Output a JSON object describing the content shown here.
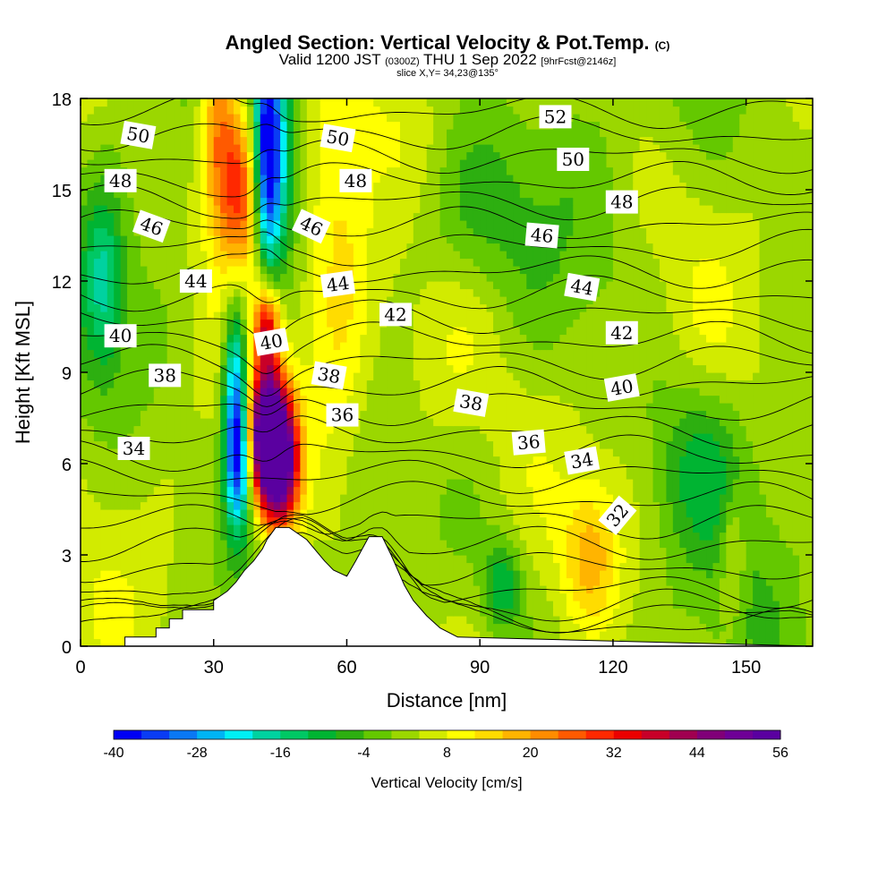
{
  "header": {
    "title": "Angled Section: Vertical Velocity & Pot.Temp.",
    "title_mark": "(C)",
    "subtitle_a": "Valid 1200 JST",
    "subtitle_b": "(0300Z)",
    "subtitle_c": "THU 1 Sep 2022",
    "subtitle_d": "[9hrFcst@2146z]",
    "slice": "slice X,Y= 34,23@135°"
  },
  "chart_data": {
    "type": "heatmap",
    "xlabel": "Distance [nm]",
    "ylabel": "Height [Kft MSL]",
    "xlim": [
      0,
      165
    ],
    "ylim": [
      0,
      18
    ],
    "xticks": [
      0,
      30,
      60,
      90,
      120,
      150
    ],
    "yticks": [
      0,
      3,
      6,
      9,
      12,
      15,
      18
    ],
    "colorbar": {
      "title": "Vertical Velocity [cm/s]",
      "min": -40,
      "max": 56,
      "step": 4,
      "tick_labels": [
        "-40",
        "-28",
        "-16",
        "-4",
        "8",
        "20",
        "32",
        "44",
        "56"
      ],
      "colors": [
        "#0000f5",
        "#0a3cf5",
        "#0a78f5",
        "#00b4f5",
        "#00f0f5",
        "#00d2a0",
        "#00c864",
        "#00b432",
        "#2daf10",
        "#64c800",
        "#9bd700",
        "#d2eb00",
        "#ffff00",
        "#ffdc00",
        "#ffb400",
        "#ff8c00",
        "#ff5a00",
        "#ff2800",
        "#eb0000",
        "#c80028",
        "#a00050",
        "#800078",
        "#6e0096",
        "#5a00a0"
      ]
    },
    "terrain_profile": {
      "x": [
        0,
        10,
        10,
        17,
        17,
        20,
        20,
        23,
        23,
        30,
        30,
        30,
        33,
        33,
        35,
        35,
        37,
        37,
        39,
        39,
        41,
        41,
        42,
        42,
        44,
        44,
        47,
        47,
        51,
        51,
        55,
        55,
        57,
        57,
        60,
        60,
        62,
        62,
        65,
        65,
        66,
        66,
        68,
        68,
        70,
        70,
        73,
        73,
        75,
        75,
        78,
        78,
        81,
        81,
        85,
        85,
        165
      ],
      "y": [
        0,
        0,
        0.3,
        0.3,
        0.6,
        0.6,
        0.9,
        0.9,
        1.2,
        1.2,
        1.5,
        1.5,
        1.8,
        1.8,
        2.1,
        2.1,
        2.5,
        2.5,
        2.8,
        2.8,
        3.2,
        3.2,
        3.5,
        3.5,
        3.9,
        3.9,
        3.9,
        3.9,
        3.5,
        3.5,
        2.8,
        2.8,
        2.5,
        2.5,
        2.3,
        2.3,
        2.8,
        2.8,
        3.6,
        3.6,
        3.6,
        3.6,
        3.6,
        3.6,
        3.0,
        3.0,
        2.0,
        2.0,
        1.5,
        1.5,
        1.0,
        1.0,
        0.6,
        0.6,
        0.3,
        0.3,
        0
      ]
    },
    "vv_features": [
      {
        "x": 31,
        "y": 17,
        "sx": 3,
        "sy": 2.5,
        "v": 24
      },
      {
        "x": 36,
        "y": 15,
        "sx": 3,
        "sy": 2,
        "v": 28
      },
      {
        "x": 42,
        "y": 16.5,
        "sx": 2,
        "sy": 3,
        "v": -36
      },
      {
        "x": 45,
        "y": 16,
        "sx": 2.5,
        "sy": 2.5,
        "v": -18
      },
      {
        "x": 35,
        "y": 8,
        "sx": 2,
        "sy": 2.5,
        "v": -36
      },
      {
        "x": 36,
        "y": 6,
        "sx": 2,
        "sy": 1.5,
        "v": -20
      },
      {
        "x": 42,
        "y": 7,
        "sx": 3,
        "sy": 1.5,
        "v": 56
      },
      {
        "x": 45,
        "y": 6,
        "sx": 3,
        "sy": 1.5,
        "v": 48
      },
      {
        "x": 42,
        "y": 10.5,
        "sx": 2,
        "sy": 1,
        "v": 32
      },
      {
        "x": 58,
        "y": 12,
        "sx": 5,
        "sy": 5,
        "v": 10
      },
      {
        "x": 80,
        "y": 9,
        "sx": 10,
        "sy": 3,
        "v": 8
      },
      {
        "x": 115,
        "y": 3,
        "sx": 4,
        "sy": 1.5,
        "v": 12
      },
      {
        "x": 147,
        "y": 3,
        "sx": 2,
        "sy": 1.5,
        "v": 10
      },
      {
        "x": 85,
        "y": 14,
        "sx": 10,
        "sy": 2,
        "v": -8
      },
      {
        "x": 140,
        "y": 6,
        "sx": 8,
        "sy": 2,
        "v": -10
      },
      {
        "x": 5,
        "y": 12,
        "sx": 3,
        "sy": 2,
        "v": -16
      },
      {
        "x": 95,
        "y": 2,
        "sx": 3,
        "sy": 1,
        "v": -14
      }
    ],
    "theta_contours": [
      {
        "label": "34",
        "base": 4.8,
        "step": 0.55,
        "lx": 12,
        "ly": 6.5,
        "rot": 0
      },
      {
        "label": "36",
        "base": 5.9,
        "step": 0.6,
        "lx": 59,
        "ly": 7.6,
        "rot": 0
      },
      {
        "label": "38",
        "base": 7.8,
        "step": 0.55,
        "lx": 19,
        "ly": 8.9,
        "rot": 0
      },
      {
        "label": "40",
        "base": 9.2,
        "step": 0.55,
        "lx": 9,
        "ly": 10.2,
        "rot": 0
      },
      {
        "label": "42",
        "base": 10.8,
        "step": 0.5,
        "lx": 71,
        "ly": 10.9,
        "rot": 0
      },
      {
        "label": "44",
        "base": 11.9,
        "step": 0.55,
        "lx": 26,
        "ly": 12.0,
        "rot": 0
      },
      {
        "label": "46",
        "base": 13.4,
        "step": 0.5,
        "lx": 14,
        "ly": 13.8,
        "rot": 20
      },
      {
        "label": "48",
        "base": 14.9,
        "step": 0.5,
        "lx": 9,
        "ly": 15.3,
        "rot": 0
      },
      {
        "label": "50",
        "base": 16.1,
        "step": 0.5,
        "lx": 13,
        "ly": 16.8,
        "rot": 10
      },
      {
        "label": "52",
        "base": 17.6,
        "step": 0.5,
        "lx": 107,
        "ly": 17.3,
        "rot": 0
      }
    ],
    "contour_labels": [
      {
        "text": "50",
        "x": 13,
        "y": 16.8,
        "rot": 10
      },
      {
        "text": "48",
        "x": 9,
        "y": 15.3,
        "rot": 0
      },
      {
        "text": "46",
        "x": 16,
        "y": 13.8,
        "rot": 20
      },
      {
        "text": "44",
        "x": 26,
        "y": 12.0,
        "rot": 0
      },
      {
        "text": "40",
        "x": 9,
        "y": 10.2,
        "rot": 0
      },
      {
        "text": "38",
        "x": 19,
        "y": 8.9,
        "rot": 0
      },
      {
        "text": "34",
        "x": 12,
        "y": 6.5,
        "rot": 0
      },
      {
        "text": "50",
        "x": 58,
        "y": 16.7,
        "rot": 10
      },
      {
        "text": "48",
        "x": 62,
        "y": 15.3,
        "rot": 0
      },
      {
        "text": "46",
        "x": 52,
        "y": 13.8,
        "rot": 25
      },
      {
        "text": "44",
        "x": 58,
        "y": 11.9,
        "rot": -8
      },
      {
        "text": "42",
        "x": 71,
        "y": 10.9,
        "rot": 0
      },
      {
        "text": "40",
        "x": 43,
        "y": 10.0,
        "rot": -10
      },
      {
        "text": "38",
        "x": 56,
        "y": 8.9,
        "rot": 10
      },
      {
        "text": "36",
        "x": 59,
        "y": 7.6,
        "rot": 0
      },
      {
        "text": "52",
        "x": 107,
        "y": 17.4,
        "rot": 0
      },
      {
        "text": "50",
        "x": 111,
        "y": 16.0,
        "rot": 0
      },
      {
        "text": "48",
        "x": 122,
        "y": 14.6,
        "rot": 0
      },
      {
        "text": "46",
        "x": 104,
        "y": 13.5,
        "rot": 5
      },
      {
        "text": "44",
        "x": 113,
        "y": 11.8,
        "rot": 10
      },
      {
        "text": "42",
        "x": 122,
        "y": 10.3,
        "rot": 0
      },
      {
        "text": "40",
        "x": 122,
        "y": 8.5,
        "rot": -10
      },
      {
        "text": "38",
        "x": 88,
        "y": 8.0,
        "rot": 10
      },
      {
        "text": "36",
        "x": 101,
        "y": 6.7,
        "rot": -5
      },
      {
        "text": "34",
        "x": 113,
        "y": 6.1,
        "rot": -10
      },
      {
        "text": "32",
        "x": 121,
        "y": 4.3,
        "rot": -50
      }
    ]
  }
}
